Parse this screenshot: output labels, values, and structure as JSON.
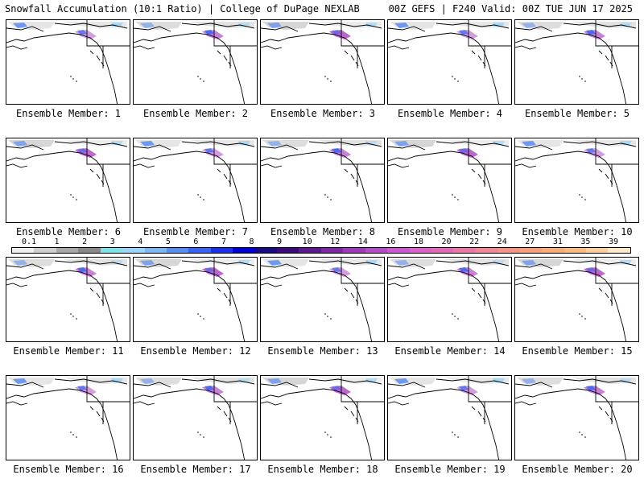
{
  "header": {
    "left": "Snowfall Accumulation (10:1 Ratio) | College of DuPage NEXLAB",
    "right": "00Z GEFS | F240 Valid: 00Z TUE JUN 17 2025"
  },
  "panels": [
    {
      "label": "Ensemble Member: 1"
    },
    {
      "label": "Ensemble Member: 2"
    },
    {
      "label": "Ensemble Member: 3"
    },
    {
      "label": "Ensemble Member: 4"
    },
    {
      "label": "Ensemble Member: 5"
    },
    {
      "label": "Ensemble Member: 6"
    },
    {
      "label": "Ensemble Member: 7"
    },
    {
      "label": "Ensemble Member: 8"
    },
    {
      "label": "Ensemble Member: 9"
    },
    {
      "label": "Ensemble Member: 10"
    },
    {
      "label": "Ensemble Member: 11"
    },
    {
      "label": "Ensemble Member: 12"
    },
    {
      "label": "Ensemble Member: 13"
    },
    {
      "label": "Ensemble Member: 14"
    },
    {
      "label": "Ensemble Member: 15"
    },
    {
      "label": "Ensemble Member: 16"
    },
    {
      "label": "Ensemble Member: 17"
    },
    {
      "label": "Ensemble Member: 18"
    },
    {
      "label": "Ensemble Member: 19"
    },
    {
      "label": "Ensemble Member: 20"
    }
  ],
  "colorbar": {
    "ticks": [
      "0.1",
      "1",
      "2",
      "3",
      "4",
      "5",
      "6",
      "7",
      "8",
      "9",
      "10",
      "12",
      "14",
      "16",
      "18",
      "20",
      "22",
      "24",
      "27",
      "31",
      "35",
      "39"
    ],
    "colors": [
      "#eeeeee",
      "#cfcfcf",
      "#a8a8a8",
      "#888888",
      "#7fe3e6",
      "#9fd3f5",
      "#7db6f0",
      "#5a8cf0",
      "#3a64f0",
      "#1e30e6",
      "#0000cc",
      "#1a0a80",
      "#3c0a78",
      "#5a1a8c",
      "#7a2aa0",
      "#9a3cb4",
      "#b04cc4",
      "#c85ad0",
      "#d864c8",
      "#e06ab8",
      "#e878a8",
      "#ee8898",
      "#f29488",
      "#f4a07c",
      "#f6ae78",
      "#f8bc80",
      "#fad0a0",
      "#fde8cc"
    ]
  }
}
